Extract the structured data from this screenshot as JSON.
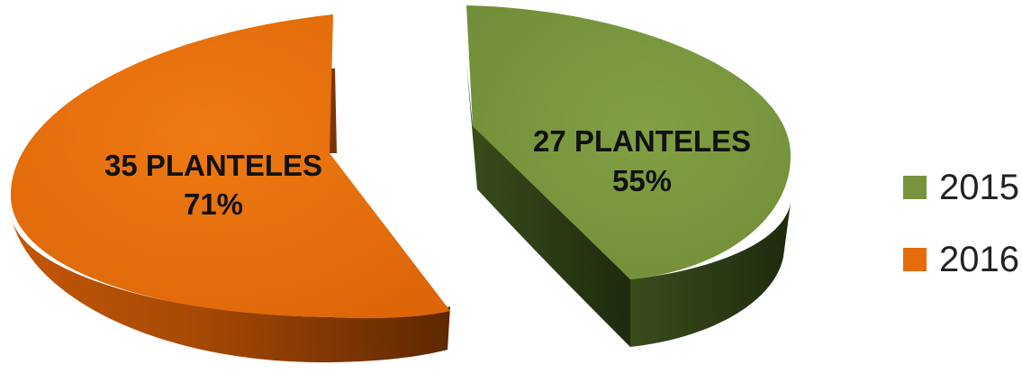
{
  "chart_data": {
    "type": "pie",
    "title": "",
    "legend_position": "right",
    "series": [
      {
        "name": "2015",
        "color": "#77933c",
        "side_color": "#2f3f17",
        "planteles": 27,
        "percent": 55,
        "label_line1": "27 PLANTELES",
        "label_line2": "55%"
      },
      {
        "name": "2016",
        "color": "#e46c0a",
        "side_color": "#7a3400",
        "planteles": 35,
        "percent": 71,
        "label_line1": "35 PLANTELES",
        "label_line2": "71%"
      }
    ]
  }
}
